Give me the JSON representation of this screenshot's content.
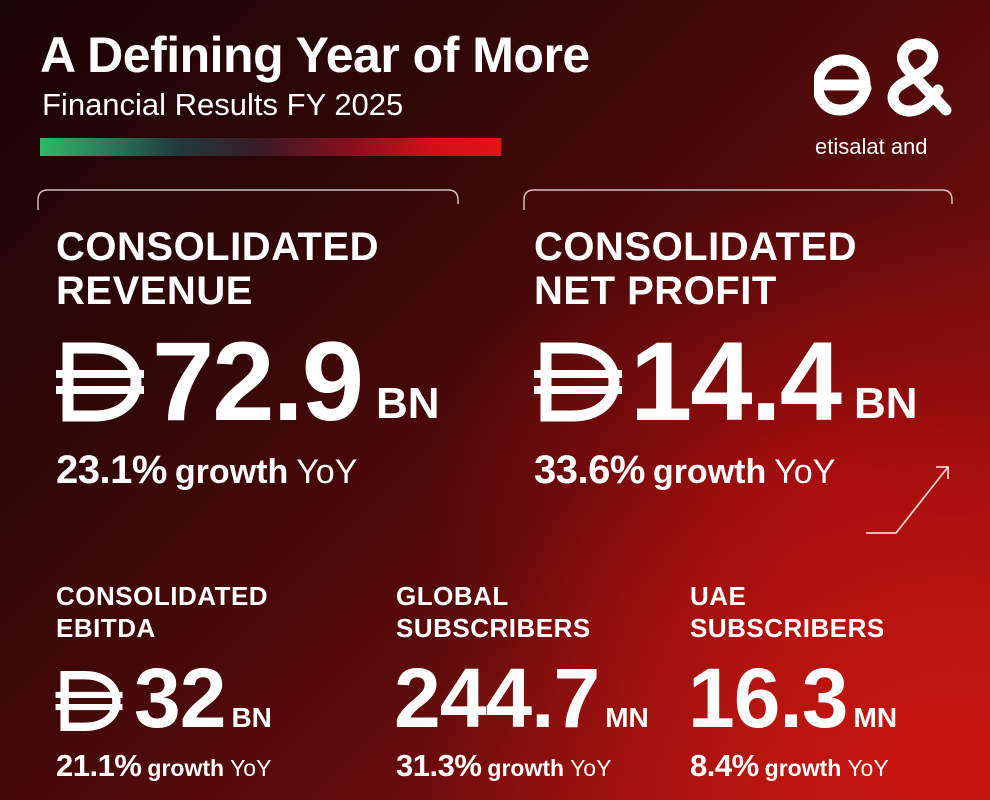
{
  "header": {
    "title": "A Defining Year of More",
    "subtitle": "Financial Results FY 2025"
  },
  "brand": {
    "logo_text": "etisalat and",
    "logo_icon": "e-ampersand-logo-icon"
  },
  "currency_icon": "dirham-icon",
  "colors": {
    "accent_green": "#2fb865",
    "accent_red": "#e21414",
    "background_dark": "#1a0404",
    "background_red": "#c8160f"
  },
  "metrics": {
    "revenue": {
      "label_line1": "CONSOLIDATED",
      "label_line2": "REVENUE",
      "value": "72.9",
      "unit": "BN",
      "growth_pct": "23.1%",
      "growth_word": "growth",
      "growth_suffix": "YoY"
    },
    "net_profit": {
      "label_line1": "CONSOLIDATED",
      "label_line2": "NET PROFIT",
      "value": "14.4",
      "unit": "BN",
      "growth_pct": "33.6%",
      "growth_word": "growth",
      "growth_suffix": "YoY"
    },
    "ebitda": {
      "label_line1": "CONSOLIDATED",
      "label_line2": "EBITDA",
      "value": "32",
      "unit": "BN",
      "growth_pct": "21.1%",
      "growth_word": "growth",
      "growth_suffix": "YoY"
    },
    "global_subscribers": {
      "label_line1": "GLOBAL",
      "label_line2": "SUBSCRIBERS",
      "value": "244.7",
      "unit": "MN",
      "growth_pct": "31.3%",
      "growth_word": "growth",
      "growth_suffix": "YoY"
    },
    "uae_subscribers": {
      "label_line1": "UAE",
      "label_line2": "SUBSCRIBERS",
      "value": "16.3",
      "unit": "MN",
      "growth_pct": "8.4%",
      "growth_word": "growth",
      "growth_suffix": "YoY"
    }
  }
}
